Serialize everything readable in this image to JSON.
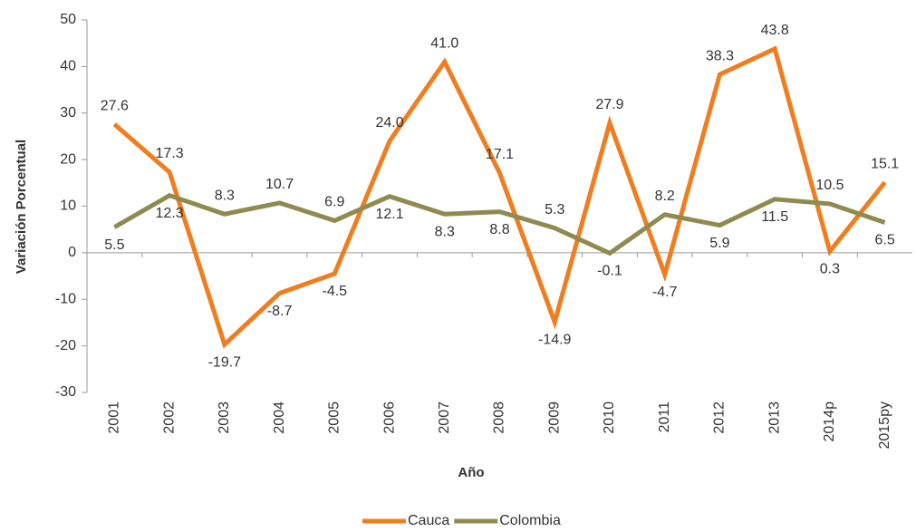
{
  "chart_data": {
    "type": "line",
    "x_label": "Año",
    "y_label": "Variación Porcentual",
    "categories": [
      "2001",
      "2002",
      "2003",
      "2004",
      "2005",
      "2006",
      "2007",
      "2008",
      "2009",
      "2010",
      "2011",
      "2012",
      "2013",
      "2014p",
      "2015py"
    ],
    "series": [
      {
        "name": "Cauca",
        "color": "#f07d1e",
        "values": [
          27.6,
          17.3,
          -19.7,
          -8.7,
          -4.5,
          24.0,
          41.0,
          17.1,
          -14.9,
          27.9,
          -4.7,
          38.3,
          43.8,
          0.3,
          15.1
        ],
        "value_labels": [
          "27.6",
          "17.3",
          "-19.7",
          "-8.7",
          "-4.5",
          "24.0",
          "41.0",
          "17.1",
          "-14.9",
          "27.9",
          "-4.7",
          "38.3",
          "43.8",
          "0.3",
          "15.1"
        ]
      },
      {
        "name": "Colombia",
        "color": "#8f8a50",
        "values": [
          5.5,
          12.3,
          8.3,
          10.7,
          6.9,
          12.1,
          8.3,
          8.8,
          5.3,
          -0.1,
          8.2,
          5.9,
          11.5,
          10.5,
          6.5
        ],
        "value_labels": [
          "5.5",
          "12.3",
          "8.3",
          "10.7",
          "6.9",
          "12.1",
          "8.3",
          "8.8",
          "5.3",
          "-0.1",
          "8.2",
          "5.9",
          "11.5",
          "10.5",
          "6.5"
        ]
      }
    ],
    "ylim": [
      -30,
      50
    ],
    "yticks": [
      -30,
      -20,
      -10,
      0,
      10,
      20,
      30,
      40,
      50
    ],
    "grid": false,
    "legend": "bottom"
  }
}
